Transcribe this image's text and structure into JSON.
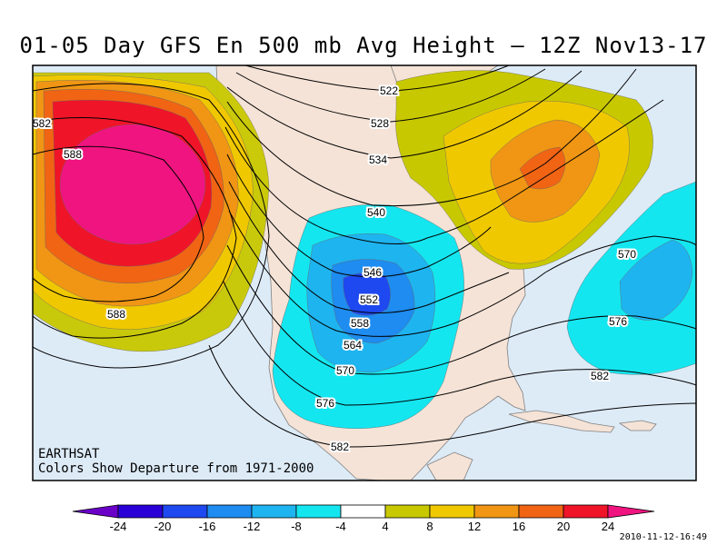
{
  "title": "01-05 Day GFS En 500 mb Avg Height — 12Z Nov13-17",
  "credit": {
    "source": "EARTHSAT",
    "note": "Colors Show Departure from 1971-2000"
  },
  "timestamp": "2010-11-12-16:49",
  "contour_labels": [
    "522",
    "528",
    "534",
    "540",
    "546",
    "552",
    "558",
    "564",
    "570",
    "576",
    "582",
    "588"
  ],
  "colorbar": {
    "ticks": [
      "-24",
      "-20",
      "-16",
      "-12",
      "-8",
      "-4",
      "4",
      "8",
      "12",
      "16",
      "20",
      "24"
    ],
    "colors": [
      "#6a00c8",
      "#2a00d8",
      "#1e48f0",
      "#1e8cf0",
      "#1eb4f0",
      "#14e6f0",
      "#ffffff",
      "#c8c800",
      "#f0c800",
      "#f09614",
      "#f06414",
      "#f01428",
      "#f01480"
    ]
  },
  "palette": {
    "ocean": "#ddebf7",
    "land": "#f5e3d7",
    "border": "#808080"
  }
}
